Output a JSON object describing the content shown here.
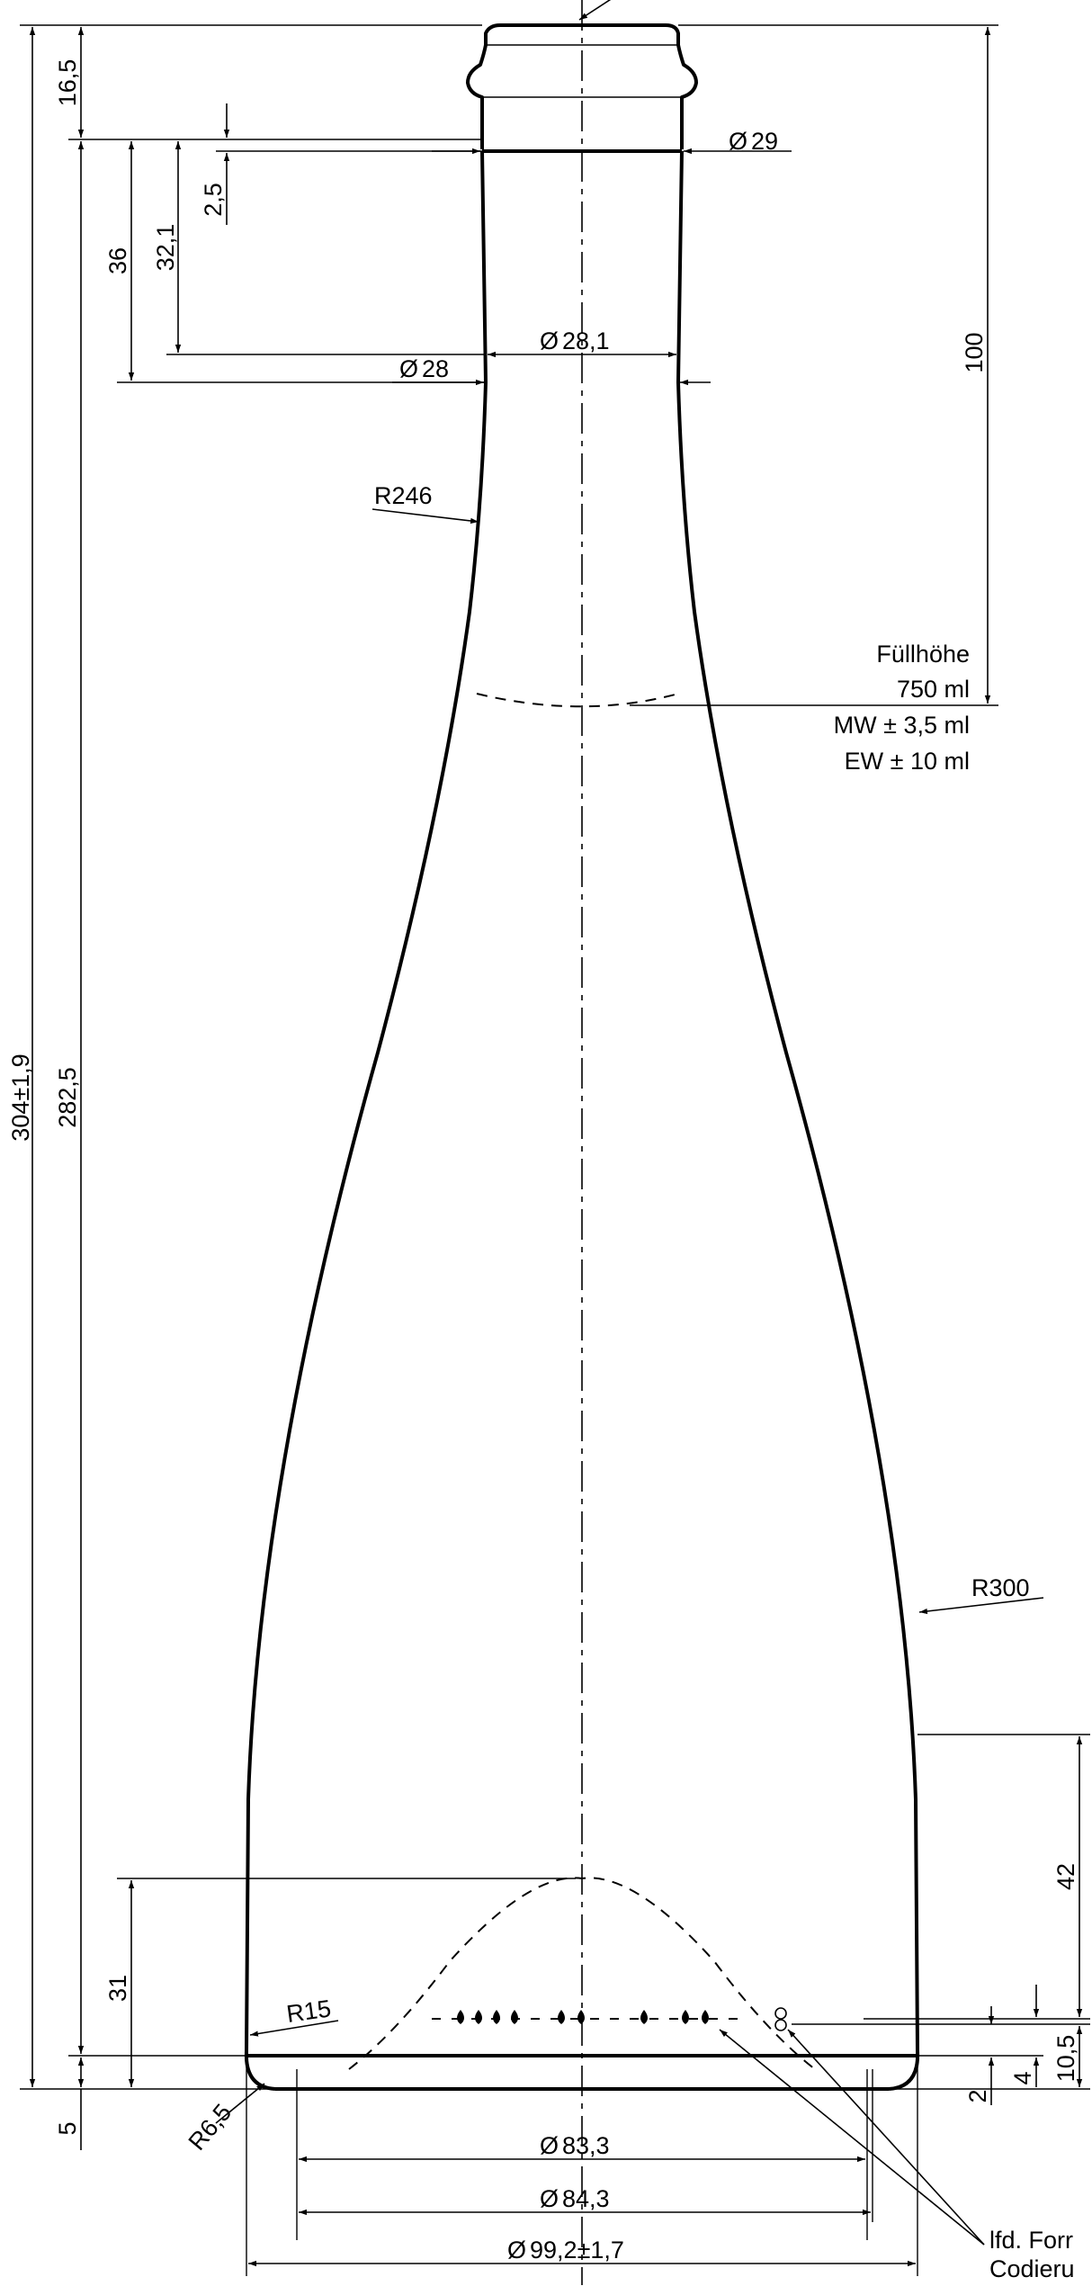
{
  "labels": {
    "total_height": "304±1,9",
    "body_height": "282,5",
    "neck_top": "16,5",
    "base_offset": "5",
    "neck_36": "36",
    "neck_32_1": "32,1",
    "neck_2_5": "2,5",
    "dia_29": "29",
    "dia_28_1": "28,1",
    "dia_28": "28",
    "r246": "R246",
    "fill_height_100": "100",
    "fill_title": "Füllhöhe",
    "fill_volume": "750 ml",
    "mw_tol": "MW ± 3,5 ml",
    "ew_tol": "EW ± 10 ml",
    "r300": "R300",
    "h42": "42",
    "h31": "31",
    "r15": "R15",
    "r6_5": "R6,5",
    "h10_5": "10,5",
    "h4": "4",
    "h2": "2",
    "dia_83_3": "83,3",
    "dia_84_3": "84,3",
    "dia_99_2": "99,2±1,7",
    "note_line1": "lfd. Forr",
    "note_line2": "Codieru",
    "diameter_symbol": "Ø"
  },
  "icons": [
    "diameter-symbol",
    "dot-code-marks",
    "arrow-heads"
  ]
}
